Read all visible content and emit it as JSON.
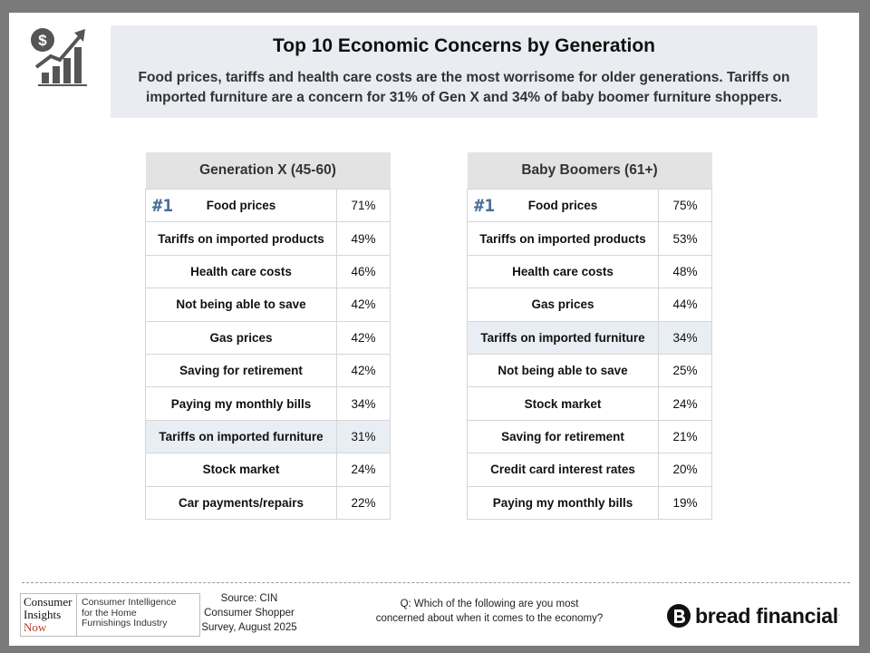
{
  "header": {
    "title": "Top 10 Economic Concerns by Generation",
    "subtitle": "Food prices, tariffs and health care costs are the most worrisome for older generations. Tariffs on imported furniture are a concern for 31% of Gen X and 34% of baby boomer furniture shoppers."
  },
  "icon": "dollar-growth-chart-icon",
  "tables": {
    "genx": {
      "title": "Generation X (45-60)",
      "rank_badge": "#1",
      "rows": [
        {
          "label": "Food prices",
          "value": "71%"
        },
        {
          "label": "Tariffs on imported products",
          "value": "49%"
        },
        {
          "label": "Health care costs",
          "value": "46%"
        },
        {
          "label": "Not being able to save",
          "value": "42%"
        },
        {
          "label": "Gas prices",
          "value": "42%"
        },
        {
          "label": "Saving for retirement",
          "value": "42%"
        },
        {
          "label": "Paying my monthly bills",
          "value": "34%"
        },
        {
          "label": "Tariffs on imported furniture",
          "value": "31%"
        },
        {
          "label": "Stock market",
          "value": "24%"
        },
        {
          "label": "Car payments/repairs",
          "value": "22%"
        }
      ]
    },
    "boomers": {
      "title": "Baby Boomers (61+)",
      "rank_badge": "#1",
      "rows": [
        {
          "label": "Food prices",
          "value": "75%"
        },
        {
          "label": "Tariffs on imported products",
          "value": "53%"
        },
        {
          "label": "Health care costs",
          "value": "48%"
        },
        {
          "label": "Gas prices",
          "value": "44%"
        },
        {
          "label": "Tariffs on imported furniture",
          "value": "34%"
        },
        {
          "label": "Not being able to save",
          "value": "25%"
        },
        {
          "label": "Stock market",
          "value": "24%"
        },
        {
          "label": "Saving for retirement",
          "value": "21%"
        },
        {
          "label": "Credit card interest rates",
          "value": "20%"
        },
        {
          "label": "Paying my monthly bills",
          "value": "19%"
        }
      ]
    }
  },
  "footer": {
    "cin_logo": {
      "line1": "Consumer",
      "line2": "Insights",
      "line3": "Now",
      "tagline1": "Consumer Intelligence",
      "tagline2": "for the Home",
      "tagline3": "Furnishings Industry"
    },
    "source_line1": "Source: CIN",
    "source_line2": "Consumer Shopper",
    "source_line3": "Survey, August 2025",
    "question_line1": "Q: Which of the following are you most",
    "question_line2": "concerned about when it comes to the economy?",
    "brand": "bread financial",
    "brand_mark": "."
  },
  "colors": {
    "header_bg": "#e9edf2",
    "highlight_row": "#e9edf4",
    "rank_badge": "#4a6e96",
    "table_header_bg": "#e3e3e3"
  }
}
